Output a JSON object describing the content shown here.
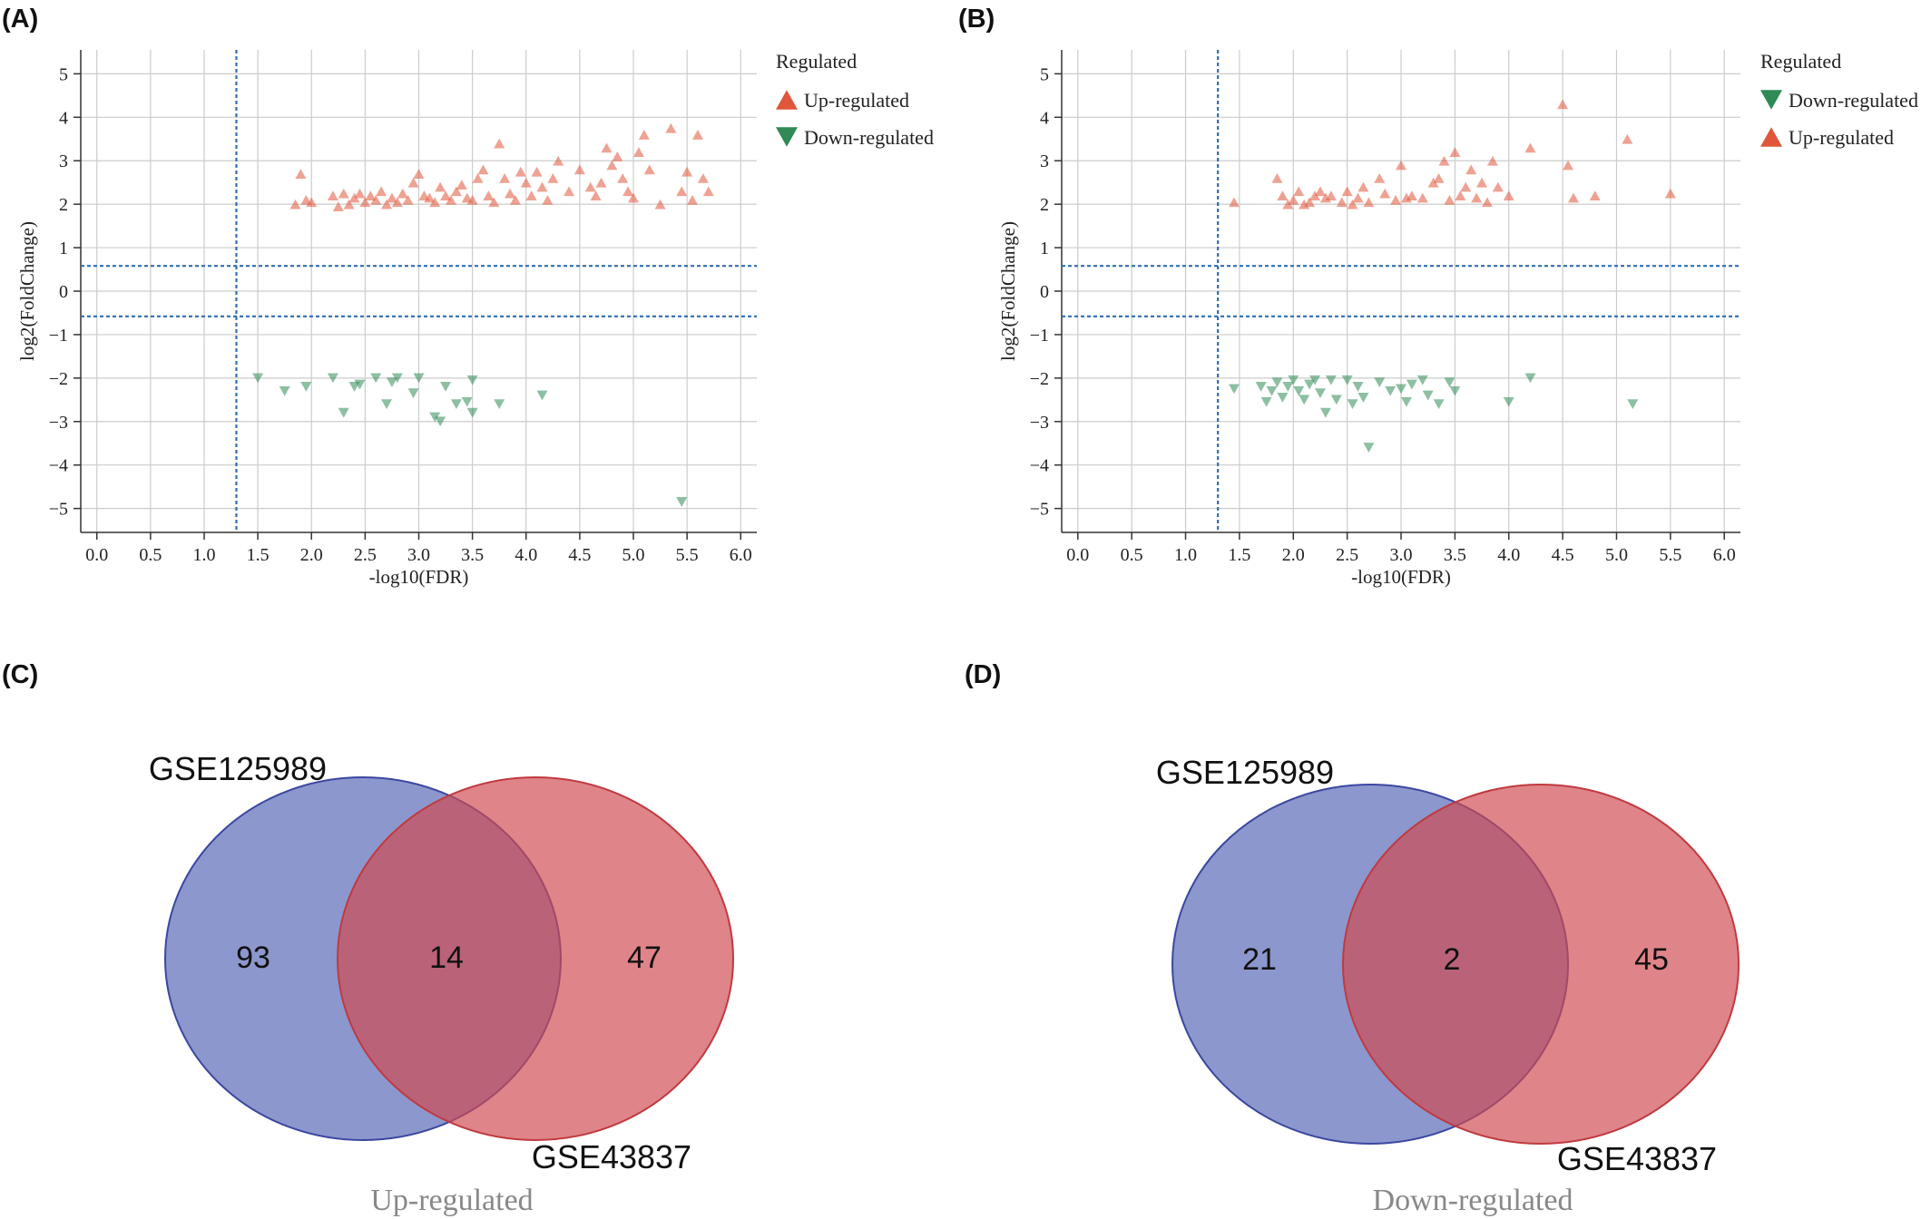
{
  "panels": {
    "a": "(A)",
    "b": "(B)",
    "c": "(C)",
    "d": "(D)"
  },
  "colors": {
    "up": "#e0563a",
    "down": "#2f8a55",
    "threshold": "#2f6fb0",
    "grid": "#cccccc",
    "venn_blue": "#5566b6",
    "venn_red": "#d04a4f"
  },
  "chart_data": [
    {
      "type": "scatter",
      "panel": "(A)",
      "xlabel": "-log10(FDR)",
      "ylabel": "log2(FoldChange)",
      "xlim": [
        -0.15,
        6.15
      ],
      "ylim": [
        -5.55,
        5.55
      ],
      "xticks": [
        "0.0",
        "0.5",
        "1.0",
        "1.5",
        "2.0",
        "2.5",
        "3.0",
        "3.5",
        "4.0",
        "4.5",
        "5.0",
        "5.5",
        "6.0"
      ],
      "yticks": [
        "5",
        "4",
        "3",
        "2",
        "1",
        "0",
        "−1",
        "−2",
        "−3",
        "−4",
        "−5"
      ],
      "grid": true,
      "thresholds": {
        "x": 1.3,
        "y": [
          0.58,
          -0.58
        ]
      },
      "legend": {
        "title": "Regulated",
        "position": "right",
        "items": [
          {
            "label": "Up-regulated",
            "marker": "up"
          },
          {
            "label": "Down-regulated",
            "marker": "down"
          }
        ]
      },
      "series": [
        {
          "name": "Up-regulated",
          "marker": "up",
          "points": [
            [
              1.85,
              2.0
            ],
            [
              1.9,
              2.7
            ],
            [
              1.95,
              2.1
            ],
            [
              2.0,
              2.05
            ],
            [
              2.2,
              2.2
            ],
            [
              2.25,
              1.95
            ],
            [
              2.3,
              2.25
            ],
            [
              2.35,
              2.0
            ],
            [
              2.4,
              2.15
            ],
            [
              2.45,
              2.25
            ],
            [
              2.5,
              2.05
            ],
            [
              2.55,
              2.2
            ],
            [
              2.6,
              2.1
            ],
            [
              2.65,
              2.3
            ],
            [
              2.7,
              2.0
            ],
            [
              2.75,
              2.15
            ],
            [
              2.8,
              2.05
            ],
            [
              2.85,
              2.25
            ],
            [
              2.9,
              2.1
            ],
            [
              2.95,
              2.5
            ],
            [
              3.0,
              2.7
            ],
            [
              3.05,
              2.2
            ],
            [
              3.1,
              2.15
            ],
            [
              3.15,
              2.05
            ],
            [
              3.2,
              2.4
            ],
            [
              3.25,
              2.2
            ],
            [
              3.3,
              2.1
            ],
            [
              3.35,
              2.3
            ],
            [
              3.4,
              2.45
            ],
            [
              3.45,
              2.15
            ],
            [
              3.5,
              2.1
            ],
            [
              3.55,
              2.6
            ],
            [
              3.6,
              2.8
            ],
            [
              3.65,
              2.2
            ],
            [
              3.7,
              2.05
            ],
            [
              3.75,
              3.4
            ],
            [
              3.8,
              2.6
            ],
            [
              3.85,
              2.25
            ],
            [
              3.9,
              2.1
            ],
            [
              3.95,
              2.75
            ],
            [
              4.0,
              2.5
            ],
            [
              4.05,
              2.2
            ],
            [
              4.1,
              2.75
            ],
            [
              4.15,
              2.4
            ],
            [
              4.2,
              2.1
            ],
            [
              4.25,
              2.6
            ],
            [
              4.3,
              3.0
            ],
            [
              4.4,
              2.3
            ],
            [
              4.5,
              2.8
            ],
            [
              4.6,
              2.4
            ],
            [
              4.65,
              2.2
            ],
            [
              4.7,
              2.5
            ],
            [
              4.75,
              3.3
            ],
            [
              4.8,
              2.9
            ],
            [
              4.85,
              3.1
            ],
            [
              4.9,
              2.6
            ],
            [
              4.95,
              2.3
            ],
            [
              5.0,
              2.15
            ],
            [
              5.05,
              3.2
            ],
            [
              5.1,
              3.6
            ],
            [
              5.15,
              2.8
            ],
            [
              5.25,
              2.0
            ],
            [
              5.35,
              3.75
            ],
            [
              5.45,
              2.3
            ],
            [
              5.5,
              2.75
            ],
            [
              5.55,
              2.1
            ],
            [
              5.6,
              3.6
            ],
            [
              5.65,
              2.6
            ],
            [
              5.7,
              2.3
            ]
          ]
        },
        {
          "name": "Down-regulated",
          "marker": "down",
          "points": [
            [
              1.5,
              -2.0
            ],
            [
              1.75,
              -2.3
            ],
            [
              1.95,
              -2.2
            ],
            [
              2.2,
              -2.0
            ],
            [
              2.3,
              -2.8
            ],
            [
              2.4,
              -2.2
            ],
            [
              2.45,
              -2.15
            ],
            [
              2.6,
              -2.0
            ],
            [
              2.7,
              -2.6
            ],
            [
              2.75,
              -2.1
            ],
            [
              2.8,
              -2.0
            ],
            [
              2.95,
              -2.35
            ],
            [
              3.0,
              -2.0
            ],
            [
              3.15,
              -2.9
            ],
            [
              3.2,
              -3.0
            ],
            [
              3.25,
              -2.2
            ],
            [
              3.35,
              -2.6
            ],
            [
              3.45,
              -2.55
            ],
            [
              3.5,
              -2.8
            ],
            [
              3.5,
              -2.05
            ],
            [
              3.75,
              -2.6
            ],
            [
              4.15,
              -2.4
            ],
            [
              5.45,
              -4.85
            ]
          ]
        }
      ]
    },
    {
      "type": "scatter",
      "panel": "(B)",
      "xlabel": "-log10(FDR)",
      "ylabel": "log2(FoldChange)",
      "xlim": [
        -0.15,
        6.15
      ],
      "ylim": [
        -5.55,
        5.55
      ],
      "xticks": [
        "0.0",
        "0.5",
        "1.0",
        "1.5",
        "2.0",
        "2.5",
        "3.0",
        "3.5",
        "4.0",
        "4.5",
        "5.0",
        "5.5",
        "6.0"
      ],
      "yticks": [
        "5",
        "4",
        "3",
        "2",
        "1",
        "0",
        "−1",
        "−2",
        "−3",
        "−4",
        "−5"
      ],
      "grid": true,
      "thresholds": {
        "x": 1.3,
        "y": [
          0.58,
          -0.58
        ]
      },
      "legend": {
        "title": "Regulated",
        "position": "right",
        "items": [
          {
            "label": "Down-regulated",
            "marker": "down"
          },
          {
            "label": "Up-regulated",
            "marker": "up"
          }
        ]
      },
      "series": [
        {
          "name": "Up-regulated",
          "marker": "up",
          "points": [
            [
              1.45,
              2.05
            ],
            [
              1.85,
              2.6
            ],
            [
              1.9,
              2.2
            ],
            [
              1.95,
              2.0
            ],
            [
              2.0,
              2.1
            ],
            [
              2.05,
              2.3
            ],
            [
              2.1,
              2.0
            ],
            [
              2.15,
              2.05
            ],
            [
              2.2,
              2.2
            ],
            [
              2.25,
              2.3
            ],
            [
              2.3,
              2.15
            ],
            [
              2.35,
              2.2
            ],
            [
              2.45,
              2.05
            ],
            [
              2.5,
              2.3
            ],
            [
              2.55,
              2.0
            ],
            [
              2.6,
              2.15
            ],
            [
              2.65,
              2.4
            ],
            [
              2.7,
              2.05
            ],
            [
              2.8,
              2.6
            ],
            [
              2.85,
              2.25
            ],
            [
              2.95,
              2.1
            ],
            [
              3.0,
              2.9
            ],
            [
              3.05,
              2.15
            ],
            [
              3.1,
              2.2
            ],
            [
              3.2,
              2.15
            ],
            [
              3.3,
              2.5
            ],
            [
              3.35,
              2.6
            ],
            [
              3.4,
              3.0
            ],
            [
              3.45,
              2.1
            ],
            [
              3.5,
              3.2
            ],
            [
              3.55,
              2.2
            ],
            [
              3.6,
              2.4
            ],
            [
              3.65,
              2.8
            ],
            [
              3.7,
              2.15
            ],
            [
              3.75,
              2.5
            ],
            [
              3.8,
              2.05
            ],
            [
              3.85,
              3.0
            ],
            [
              3.9,
              2.4
            ],
            [
              4.0,
              2.2
            ],
            [
              4.2,
              3.3
            ],
            [
              4.5,
              4.3
            ],
            [
              4.55,
              2.9
            ],
            [
              4.6,
              2.15
            ],
            [
              4.8,
              2.2
            ],
            [
              5.1,
              3.5
            ],
            [
              5.5,
              2.25
            ]
          ]
        },
        {
          "name": "Down-regulated",
          "marker": "down",
          "points": [
            [
              1.45,
              -2.25
            ],
            [
              1.7,
              -2.2
            ],
            [
              1.75,
              -2.55
            ],
            [
              1.8,
              -2.3
            ],
            [
              1.85,
              -2.1
            ],
            [
              1.9,
              -2.45
            ],
            [
              1.95,
              -2.2
            ],
            [
              2.0,
              -2.05
            ],
            [
              2.05,
              -2.3
            ],
            [
              2.1,
              -2.5
            ],
            [
              2.15,
              -2.15
            ],
            [
              2.2,
              -2.05
            ],
            [
              2.25,
              -2.35
            ],
            [
              2.3,
              -2.8
            ],
            [
              2.35,
              -2.05
            ],
            [
              2.4,
              -2.5
            ],
            [
              2.5,
              -2.05
            ],
            [
              2.55,
              -2.6
            ],
            [
              2.6,
              -2.2
            ],
            [
              2.65,
              -2.45
            ],
            [
              2.7,
              -3.6
            ],
            [
              2.8,
              -2.1
            ],
            [
              2.9,
              -2.3
            ],
            [
              3.0,
              -2.25
            ],
            [
              3.05,
              -2.55
            ],
            [
              3.1,
              -2.15
            ],
            [
              3.2,
              -2.05
            ],
            [
              3.25,
              -2.4
            ],
            [
              3.35,
              -2.6
            ],
            [
              3.45,
              -2.1
            ],
            [
              3.5,
              -2.3
            ],
            [
              4.0,
              -2.55
            ],
            [
              4.2,
              -2.0
            ],
            [
              5.15,
              -2.6
            ]
          ]
        }
      ]
    },
    {
      "type": "venn",
      "panel": "(C)",
      "sets": [
        "GSE125989",
        "GSE43837"
      ],
      "counts": {
        "left_only": 93,
        "both": 14,
        "right_only": 47
      },
      "caption": "Up-regulated"
    },
    {
      "type": "venn",
      "panel": "(D)",
      "sets": [
        "GSE125989",
        "GSE43837"
      ],
      "counts": {
        "left_only": 21,
        "both": 2,
        "right_only": 45
      },
      "caption": "Down-regulated"
    }
  ]
}
